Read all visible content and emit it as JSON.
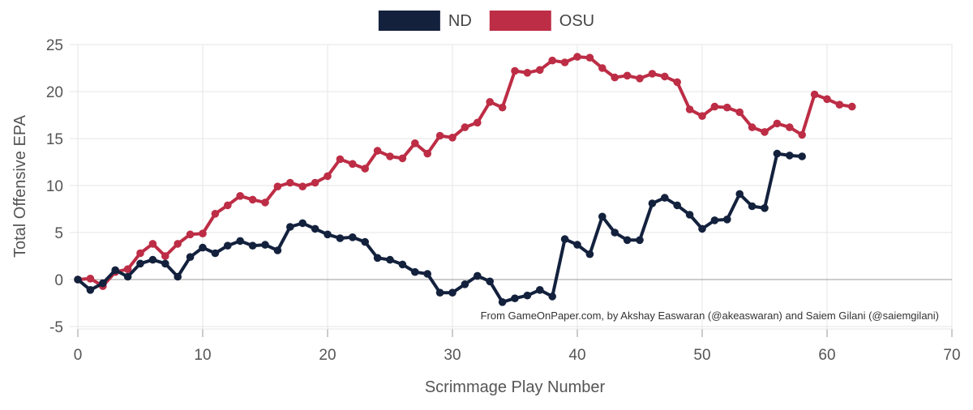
{
  "chart_data": {
    "type": "line",
    "xlabel": "Scrimmage Play Number",
    "ylabel": "Total Offensive EPA",
    "xlim": [
      0,
      70
    ],
    "ylim": [
      -5,
      25
    ],
    "xticks": [
      0,
      10,
      20,
      30,
      40,
      50,
      60,
      70
    ],
    "yticks": [
      -5,
      0,
      5,
      10,
      15,
      20,
      25
    ],
    "grid": true,
    "zero_line": true,
    "legend_position": "top-center",
    "credit": "From GameOnPaper.com, by Akshay Easwaran (@akeaswaran) and Saiem Gilani (@saiemgilani)",
    "series": [
      {
        "name": "ND",
        "color": "#13213d",
        "x": [
          0,
          1,
          2,
          3,
          4,
          5,
          6,
          7,
          8,
          9,
          10,
          11,
          12,
          13,
          14,
          15,
          16,
          17,
          18,
          19,
          20,
          21,
          22,
          23,
          24,
          25,
          26,
          27,
          28,
          29,
          30,
          31,
          32,
          33,
          34,
          35,
          36,
          37,
          38,
          39,
          40,
          41,
          42,
          43,
          44,
          45,
          46,
          47,
          48,
          49,
          50,
          51,
          52,
          53,
          54,
          55,
          56,
          57,
          58
        ],
        "y": [
          0,
          -1.1,
          -0.4,
          1.0,
          0.3,
          1.7,
          2.1,
          1.7,
          0.3,
          2.4,
          3.4,
          2.8,
          3.6,
          4.1,
          3.6,
          3.7,
          3.1,
          5.6,
          6.0,
          5.4,
          4.8,
          4.4,
          4.5,
          4.0,
          2.3,
          2.1,
          1.6,
          0.8,
          0.6,
          -1.4,
          -1.4,
          -0.5,
          0.4,
          -0.2,
          -2.4,
          -2.0,
          -1.7,
          -1.1,
          -1.8,
          4.3,
          3.7,
          2.7,
          6.7,
          5.0,
          4.2,
          4.2,
          8.1,
          8.7,
          7.9,
          6.9,
          5.4,
          6.3,
          6.4,
          9.1,
          7.8,
          7.6,
          13.4,
          13.2,
          13.1
        ]
      },
      {
        "name": "OSU",
        "color": "#bd2d45",
        "x": [
          0,
          1,
          2,
          3,
          4,
          5,
          6,
          7,
          8,
          9,
          10,
          11,
          12,
          13,
          14,
          15,
          16,
          17,
          18,
          19,
          20,
          21,
          22,
          23,
          24,
          25,
          26,
          27,
          28,
          29,
          30,
          31,
          32,
          33,
          34,
          35,
          36,
          37,
          38,
          39,
          40,
          41,
          42,
          43,
          44,
          45,
          46,
          47,
          48,
          49,
          50,
          51,
          52,
          53,
          54,
          55,
          56,
          57,
          58,
          59,
          60,
          61,
          62
        ],
        "y": [
          0,
          0.1,
          -0.7,
          0.8,
          1.1,
          2.8,
          3.8,
          2.5,
          3.8,
          4.8,
          4.9,
          7.0,
          7.9,
          8.9,
          8.5,
          8.2,
          9.9,
          10.3,
          9.9,
          10.3,
          11.0,
          12.8,
          12.3,
          11.8,
          13.7,
          13.1,
          12.9,
          14.5,
          13.4,
          15.3,
          15.1,
          16.2,
          16.7,
          18.9,
          18.3,
          22.2,
          22.0,
          22.3,
          23.3,
          23.1,
          23.7,
          23.6,
          22.5,
          21.5,
          21.7,
          21.4,
          21.9,
          21.6,
          21.0,
          18.1,
          17.4,
          18.4,
          18.3,
          17.8,
          16.2,
          15.7,
          16.6,
          16.2,
          15.4,
          19.7,
          19.2,
          18.6,
          18.4
        ]
      }
    ]
  }
}
